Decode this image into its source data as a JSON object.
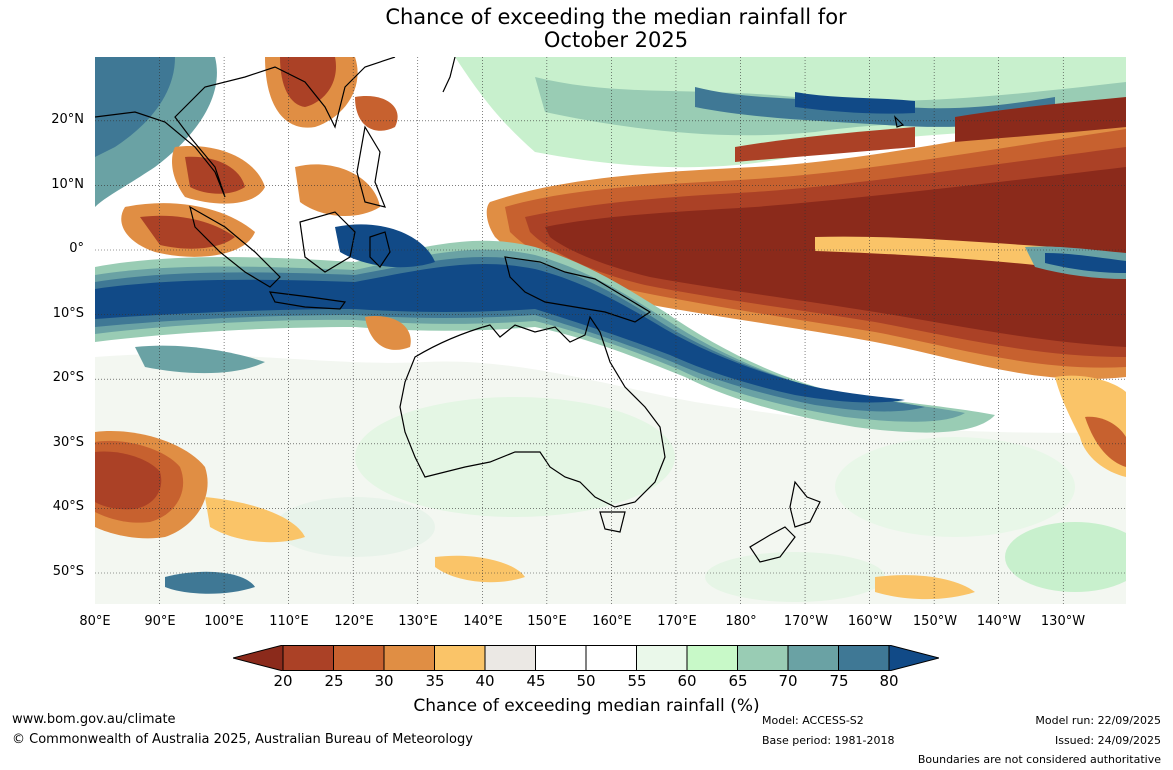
{
  "title": {
    "line1": "Chance of exceeding the median rainfall for",
    "line2": "October 2025"
  },
  "axes": {
    "lat_labels": [
      "20°N",
      "10°N",
      "0°",
      "10°S",
      "20°S",
      "30°S",
      "40°S",
      "50°S"
    ],
    "lat_values": [
      20,
      10,
      0,
      -10,
      -20,
      -30,
      -40,
      -50
    ],
    "lon_labels": [
      "80°E",
      "90°E",
      "100°E",
      "110°E",
      "120°E",
      "130°E",
      "140°E",
      "150°E",
      "160°E",
      "170°E",
      "180°",
      "170°W",
      "160°W",
      "150°W",
      "140°W",
      "130°W"
    ],
    "lon_values": [
      80,
      90,
      100,
      110,
      120,
      130,
      140,
      150,
      160,
      170,
      180,
      190,
      200,
      210,
      220,
      230
    ],
    "lon_range": [
      80,
      239
    ],
    "lat_range": [
      -55,
      30
    ]
  },
  "legend": {
    "ticks": [
      "20",
      "25",
      "30",
      "35",
      "40",
      "45",
      "50",
      "55",
      "60",
      "65",
      "70",
      "75",
      "80"
    ],
    "label": "Chance of exceeding median rainfall (%)",
    "colors": [
      "#8b2a1b",
      "#ab4126",
      "#c7612f",
      "#e08e44",
      "#fac468",
      "#ebe8e4",
      "#ffffff",
      "#ffffff",
      "#eaf8ea",
      "#c8f9c8",
      "#99ccb4",
      "#6aa2a4",
      "#3f7895",
      "#114a87"
    ]
  },
  "footer": {
    "website": "www.bom.gov.au/climate",
    "copyright": "© Commonwealth of Australia 2025, Australian Bureau of Meteorology",
    "model": "Model: ACCESS-S2",
    "base_period": "Base period: 1981-2018",
    "model_run": "Model run: 22/09/2025",
    "issued": "Issued: 24/09/2025",
    "disclaimer": "Boundaries are not considered authoritative"
  }
}
